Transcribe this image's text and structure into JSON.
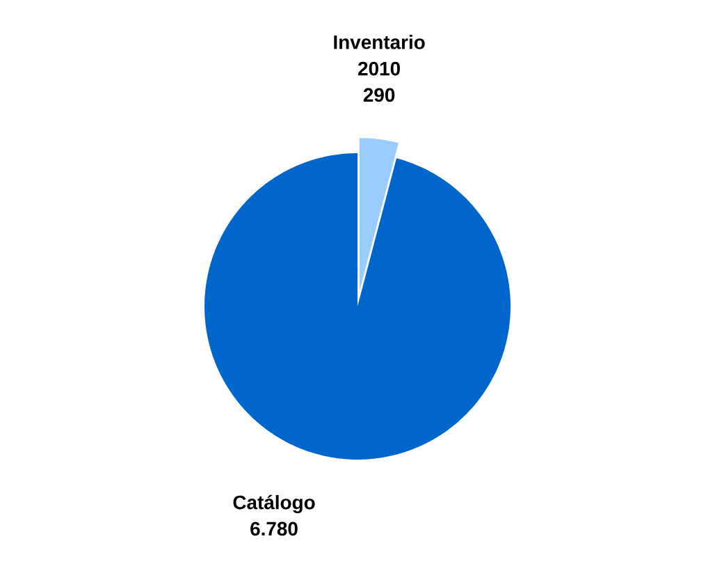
{
  "chart_data": {
    "type": "pie",
    "categories": [
      "Inventario 2010",
      "Catálogo"
    ],
    "values": [
      290,
      6780
    ],
    "value_labels": [
      "290",
      "6.780"
    ],
    "colors": [
      "#99ccff",
      "#0066cc"
    ]
  }
}
